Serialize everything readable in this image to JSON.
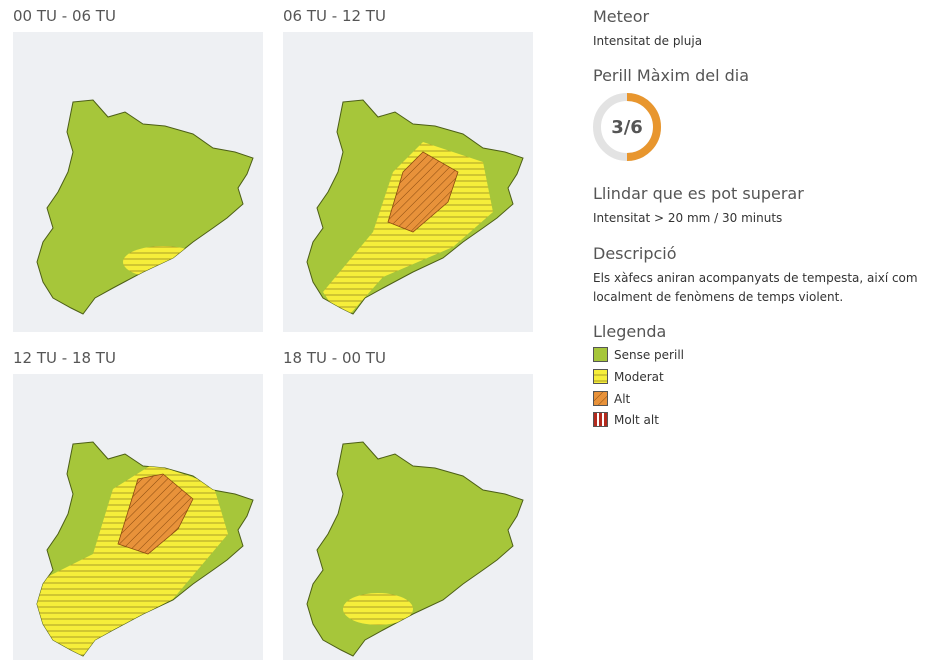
{
  "maps": [
    {
      "title": "00 TU - 06 TU"
    },
    {
      "title": "06 TU - 12 TU"
    },
    {
      "title": "12 TU - 18 TU"
    },
    {
      "title": "18 TU - 00 TU"
    }
  ],
  "sidebar": {
    "meteor": {
      "title": "Meteor",
      "text": "Intensitat de pluja"
    },
    "danger": {
      "title": "Perill Màxim del dia",
      "value": 3,
      "max": 6,
      "label": "3/6"
    },
    "threshold": {
      "title": "Llindar que es pot superar",
      "text": "Intensitat > 20 mm / 30 minuts"
    },
    "description": {
      "title": "Descripció",
      "text": "Els xàfecs aniran acompanyats de tempesta, així com localment de fenòmens de temps violent."
    },
    "legend": {
      "title": "Llegenda",
      "items": [
        "Sense perill",
        "Moderat",
        "Alt",
        "Molt alt"
      ]
    }
  }
}
